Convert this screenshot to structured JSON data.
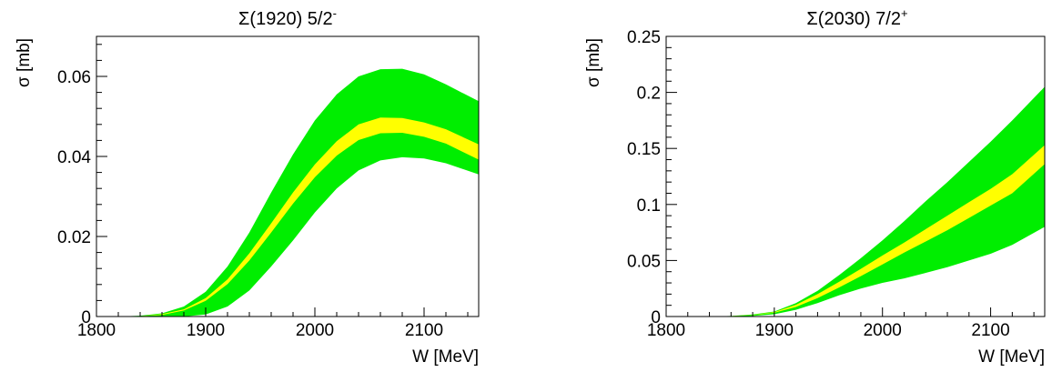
{
  "chart_data": [
    {
      "type": "area",
      "title": "Σ(1920) 5/2",
      "title_superscript": "-",
      "xlabel": "W [MeV]",
      "ylabel": "σ [mb]",
      "xlim": [
        1800,
        2150
      ],
      "ylim": [
        0,
        0.07
      ],
      "x_ticks": [
        1800,
        1900,
        2000,
        2100
      ],
      "x_tick_labels": [
        "1800",
        "1900",
        "2000",
        "2100"
      ],
      "y_ticks": [
        0,
        0.02,
        0.04,
        0.06
      ],
      "y_tick_labels": [
        "0",
        "0.02",
        "0.04",
        "0.06"
      ],
      "grid": false,
      "colors": {
        "outer_band": "#00ee00",
        "inner_band": "#ffff00"
      },
      "x": [
        1820,
        1840,
        1860,
        1880,
        1900,
        1920,
        1940,
        1960,
        1980,
        2000,
        2020,
        2040,
        2060,
        2080,
        2100,
        2120,
        2150
      ],
      "bands": [
        {
          "role": "outer",
          "lower": [
            0,
            0,
            0,
            0,
            0.0005,
            0.0025,
            0.0065,
            0.0125,
            0.019,
            0.026,
            0.032,
            0.0365,
            0.039,
            0.0398,
            0.0395,
            0.0383,
            0.0355
          ],
          "upper": [
            0,
            0.0002,
            0.0008,
            0.0025,
            0.0062,
            0.0125,
            0.021,
            0.031,
            0.0405,
            0.049,
            0.0555,
            0.06,
            0.0618,
            0.0619,
            0.0605,
            0.058,
            0.0538
          ]
        },
        {
          "role": "inner",
          "lower": [
            0,
            0.0001,
            0.0004,
            0.0015,
            0.0039,
            0.0081,
            0.014,
            0.021,
            0.0282,
            0.0348,
            0.0402,
            0.0441,
            0.0458,
            0.0459,
            0.0449,
            0.0432,
            0.0392
          ],
          "upper": [
            0,
            0.0001,
            0.0006,
            0.0018,
            0.0046,
            0.0093,
            0.0158,
            0.0233,
            0.031,
            0.038,
            0.0438,
            0.048,
            0.0497,
            0.0496,
            0.0485,
            0.0468,
            0.043
          ]
        }
      ]
    },
    {
      "type": "area",
      "title": "Σ(2030) 7/2",
      "title_superscript": "+",
      "xlabel": "W [MeV]",
      "ylabel": "σ [mb]",
      "xlim": [
        1800,
        2150
      ],
      "ylim": [
        0,
        0.25
      ],
      "x_ticks": [
        1800,
        1900,
        2000,
        2100
      ],
      "x_tick_labels": [
        "1800",
        "1900",
        "2000",
        "2100"
      ],
      "y_ticks": [
        0,
        0.05,
        0.1,
        0.15,
        0.2,
        0.25
      ],
      "y_tick_labels": [
        "0",
        "0.05",
        "0.1",
        "0.15",
        "0.2",
        "0.25"
      ],
      "grid": false,
      "colors": {
        "outer_band": "#00ee00",
        "inner_band": "#ffff00"
      },
      "x": [
        1840,
        1860,
        1880,
        1900,
        1920,
        1940,
        1960,
        1980,
        2000,
        2020,
        2040,
        2060,
        2080,
        2100,
        2120,
        2150
      ],
      "bands": [
        {
          "role": "outer",
          "lower": [
            0,
            0,
            0.0005,
            0.002,
            0.006,
            0.012,
            0.019,
            0.025,
            0.03,
            0.034,
            0.039,
            0.044,
            0.05,
            0.056,
            0.064,
            0.08
          ],
          "upper": [
            0,
            0.0005,
            0.0018,
            0.0045,
            0.012,
            0.023,
            0.037,
            0.052,
            0.068,
            0.085,
            0.103,
            0.12,
            0.138,
            0.156,
            0.175,
            0.205
          ]
        },
        {
          "role": "inner",
          "lower": [
            0,
            0.0003,
            0.0012,
            0.0033,
            0.0085,
            0.0165,
            0.026,
            0.036,
            0.0465,
            0.057,
            0.067,
            0.077,
            0.088,
            0.099,
            0.11,
            0.136
          ],
          "upper": [
            0,
            0.0004,
            0.0015,
            0.004,
            0.0105,
            0.02,
            0.031,
            0.0425,
            0.0545,
            0.066,
            0.078,
            0.09,
            0.102,
            0.114,
            0.127,
            0.153
          ]
        }
      ]
    }
  ]
}
